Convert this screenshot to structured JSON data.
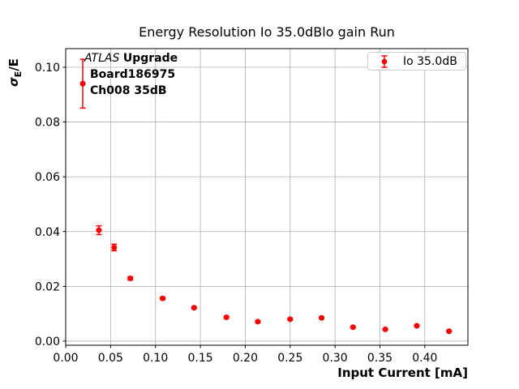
{
  "chart_data": {
    "type": "scatter",
    "title": "Energy Resolution Io 35.0dBlo gain Run",
    "xlabel": "Input Current [mA]",
    "ylabel": "σ_E/E",
    "ylabel_parts": {
      "sigma": "σ",
      "subscript": "E",
      "rest": "/E"
    },
    "xlim": [
      0,
      0.448
    ],
    "ylim": [
      -0.0015,
      0.1068
    ],
    "xticks": [
      0,
      0.05,
      0.1,
      0.15,
      0.2,
      0.25,
      0.3,
      0.35,
      0.4
    ],
    "xtick_labels": [
      "0.00",
      "0.05",
      "0.10",
      "0.15",
      "0.20",
      "0.25",
      "0.30",
      "0.35",
      "0.40"
    ],
    "yticks": [
      0,
      0.02,
      0.04,
      0.06,
      0.08,
      0.1
    ],
    "ytick_labels": [
      "0.00",
      "0.02",
      "0.04",
      "0.06",
      "0.08",
      "0.10"
    ],
    "grid": true,
    "legend_position": "upper right",
    "series": [
      {
        "name": "Io 35.0dB",
        "color": "#ff0000",
        "marker": "circle",
        "x": [
          0.019,
          0.037,
          0.054,
          0.072,
          0.108,
          0.143,
          0.179,
          0.214,
          0.25,
          0.285,
          0.32,
          0.356,
          0.391,
          0.427
        ],
        "y": [
          0.094,
          0.0405,
          0.0342,
          0.0229,
          0.0156,
          0.0122,
          0.0087,
          0.0071,
          0.008,
          0.0085,
          0.0051,
          0.0043,
          0.0056,
          0.0036
        ],
        "yerr": [
          0.0089,
          0.0016,
          0.0012,
          0.0006,
          0.0004,
          0.0003,
          0.0003,
          0.0003,
          0.0003,
          0.0003,
          0.0002,
          0.0002,
          0.0002,
          0.0002
        ]
      }
    ]
  },
  "annotation": {
    "line1_italic": "ATLAS",
    "line1_bold": "Upgrade",
    "line2": "Board186975",
    "line3": "Ch008 35dB"
  },
  "colors": {
    "grid": "#b0b0b0",
    "spine": "#000000",
    "text": "#000000",
    "background": "#ffffff"
  }
}
